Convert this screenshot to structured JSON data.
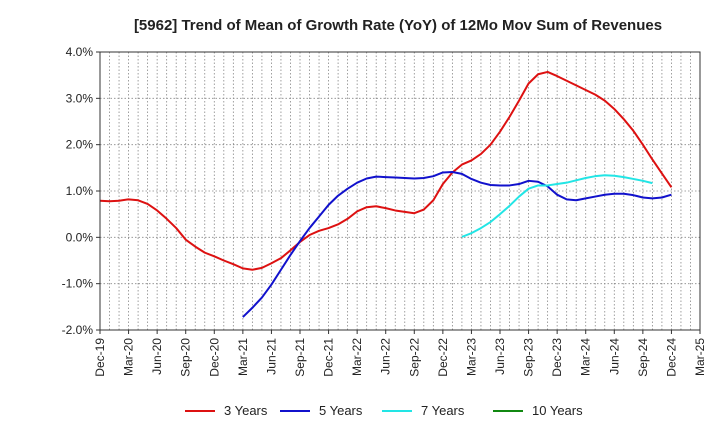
{
  "chart_data": {
    "type": "line",
    "title": "[5962]  Trend of Mean of Growth Rate (YoY) of 12Mo Mov Sum of Revenues",
    "xlabel": "",
    "ylabel": "",
    "ylim": [
      -2.0,
      4.0
    ],
    "y_ticks": [
      4.0,
      3.0,
      2.0,
      1.0,
      0.0,
      -1.0,
      -2.0
    ],
    "y_tick_labels": [
      "4.0%",
      "3.0%",
      "2.0%",
      "1.0%",
      "0.0%",
      "-1.0%",
      "-2.0%"
    ],
    "x_tick_labels": [
      "Dec-19",
      "Mar-20",
      "Jun-20",
      "Sep-20",
      "Dec-20",
      "Mar-21",
      "Jun-21",
      "Sep-21",
      "Dec-21",
      "Mar-22",
      "Jun-22",
      "Sep-22",
      "Dec-22",
      "Mar-23",
      "Jun-23",
      "Sep-23",
      "Dec-23",
      "Mar-24",
      "Jun-24",
      "Sep-24",
      "Dec-24",
      "Mar-25"
    ],
    "grid": true,
    "legend_position": "bottom",
    "series": [
      {
        "name": "3 Years",
        "color": "#dd1111",
        "start_index": 0,
        "values": [
          0.79,
          0.78,
          0.79,
          0.82,
          0.8,
          0.72,
          0.58,
          0.4,
          0.2,
          -0.05,
          -0.2,
          -0.33,
          -0.41,
          -0.5,
          -0.58,
          -0.67,
          -0.7,
          -0.66,
          -0.56,
          -0.45,
          -0.28,
          -0.1,
          0.05,
          0.14,
          0.2,
          0.28,
          0.4,
          0.56,
          0.65,
          0.67,
          0.63,
          0.58,
          0.55,
          0.52,
          0.6,
          0.8,
          1.15,
          1.4,
          1.57,
          1.66,
          1.8,
          2.0,
          2.28,
          2.6,
          2.95,
          3.32,
          3.52,
          3.57,
          3.48,
          3.38,
          3.28,
          3.18,
          3.08,
          2.95,
          2.77,
          2.55,
          2.3,
          2.0,
          1.68,
          1.38,
          1.08
        ]
      },
      {
        "name": "5 Years",
        "color": "#1111cc",
        "start_index": 15,
        "values": [
          -1.72,
          -1.52,
          -1.3,
          -1.02,
          -0.7,
          -0.38,
          -0.08,
          0.2,
          0.45,
          0.7,
          0.9,
          1.05,
          1.18,
          1.27,
          1.31,
          1.3,
          1.29,
          1.28,
          1.27,
          1.28,
          1.32,
          1.4,
          1.41,
          1.37,
          1.26,
          1.18,
          1.13,
          1.12,
          1.12,
          1.15,
          1.22,
          1.2,
          1.1,
          0.92,
          0.82,
          0.8,
          0.84,
          0.88,
          0.92,
          0.94,
          0.94,
          0.91,
          0.86,
          0.84,
          0.86,
          0.92
        ]
      },
      {
        "name": "7 Years",
        "color": "#22e5e5",
        "start_index": 38,
        "values": [
          0.01,
          0.09,
          0.2,
          0.33,
          0.5,
          0.68,
          0.88,
          1.05,
          1.12,
          1.12,
          1.15,
          1.18,
          1.23,
          1.28,
          1.32,
          1.34,
          1.33,
          1.3,
          1.26,
          1.22,
          1.17
        ]
      },
      {
        "name": "10 Years",
        "color": "#118811",
        "start_index": 0,
        "values": []
      }
    ]
  }
}
